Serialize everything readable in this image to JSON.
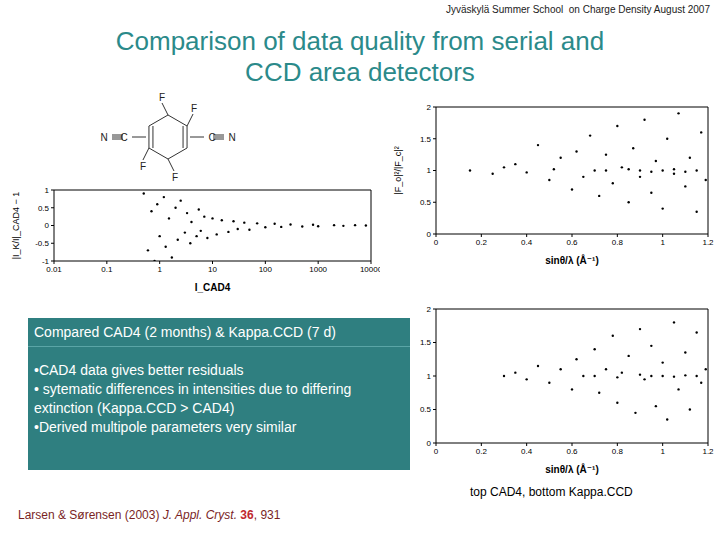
{
  "header": "Jyväskylä Summer School  on Charge Density August 2007",
  "title": [
    "Comparison of data quality from serial and",
    "CCD area detectors"
  ],
  "molecule": {
    "labels": {
      "top_left": "F",
      "top_right": "F",
      "bottom_left": "F",
      "bottom_right": "F",
      "left_n": "N",
      "left_c": "C",
      "right_c": "C",
      "right_n": "N"
    }
  },
  "chart_data": [
    {
      "type": "scatter",
      "xlabel": "I_CAD4",
      "ylabel": "|I_K/I|_CAD4 − 1",
      "log": "x",
      "xlim": [
        0.01,
        10000
      ],
      "xticks": [
        0.01,
        0.1,
        1,
        10,
        100,
        1000,
        10000
      ],
      "ylim": [
        -1,
        1
      ],
      "yticks": [
        -1,
        -0.5,
        0,
        0.5,
        1
      ],
      "color": "#000000",
      "marker": "dot",
      "x": [
        0.5,
        0.6,
        0.7,
        0.8,
        0.9,
        1,
        1.2,
        1.3,
        1.5,
        1.7,
        2,
        2.2,
        2.5,
        3,
        3.3,
        3.8,
        4,
        5,
        5.5,
        6,
        7,
        8,
        10,
        12,
        15,
        20,
        25,
        30,
        40,
        50,
        70,
        100,
        150,
        200,
        300,
        500,
        800,
        1000,
        2000,
        3000,
        5000,
        8000
      ],
      "values": [
        0.9,
        -0.7,
        0.4,
        -1,
        0.6,
        -0.3,
        0.8,
        -0.6,
        0.2,
        -0.9,
        0.5,
        -0.4,
        0.7,
        -0.2,
        0.35,
        -0.5,
        0.1,
        -0.3,
        0.45,
        -0.15,
        0.25,
        -0.35,
        0.2,
        -0.25,
        0.15,
        -0.18,
        0.12,
        -0.1,
        0.08,
        -0.12,
        0.06,
        -0.05,
        0.05,
        -0.04,
        0.03,
        -0.03,
        0.02,
        -0.02,
        0.01,
        -0.01,
        0.01,
        0
      ]
    },
    {
      "type": "scatter",
      "xlabel": "sinθ/λ (Å⁻¹)",
      "ylabel": "|F_o|²/|F_c|²",
      "xlim": [
        0,
        1.2
      ],
      "xticks": [
        0,
        0.2,
        0.4,
        0.6,
        0.8,
        1,
        1.2
      ],
      "ylim": [
        0,
        2
      ],
      "yticks": [
        0,
        0.5,
        1,
        1.5,
        2
      ],
      "color": "#000000",
      "marker": "dot",
      "x": [
        0.15,
        0.25,
        0.3,
        0.35,
        0.4,
        0.45,
        0.5,
        0.52,
        0.55,
        0.6,
        0.62,
        0.65,
        0.68,
        0.7,
        0.72,
        0.75,
        0.78,
        0.8,
        0.82,
        0.85,
        0.87,
        0.9,
        0.92,
        0.95,
        0.97,
        1.0,
        1.02,
        1.05,
        1.07,
        1.1,
        1.12,
        1.15,
        1.17,
        1.19,
        1.0,
        1.05,
        1.1,
        1.15,
        0.9,
        0.95,
        0.85,
        0.75
      ],
      "values": [
        1.0,
        0.95,
        1.05,
        1.1,
        0.97,
        1.4,
        0.85,
        1.02,
        1.2,
        0.7,
        1.3,
        0.9,
        1.55,
        1.0,
        0.6,
        1.25,
        0.8,
        1.7,
        1.05,
        0.5,
        1.35,
        0.9,
        1.8,
        0.65,
        1.15,
        0.4,
        1.5,
        0.95,
        1.9,
        0.75,
        1.2,
        0.35,
        1.6,
        0.85,
        1.0,
        1.02,
        0.98,
        1.0,
        1.0,
        0.98,
        1.02,
        1.0
      ]
    },
    {
      "type": "scatter",
      "xlabel": "sinθ/λ (Å⁻¹)",
      "ylabel": "|F_o|²/|F_c|²",
      "xlim": [
        0,
        1.2
      ],
      "xticks": [
        0,
        0.2,
        0.4,
        0.6,
        0.8,
        1,
        1.2
      ],
      "ylim": [
        0,
        2
      ],
      "yticks": [
        0,
        0.5,
        1,
        1.5,
        2
      ],
      "color": "#000000",
      "marker": "dot",
      "x": [
        0.3,
        0.35,
        0.4,
        0.45,
        0.5,
        0.55,
        0.6,
        0.62,
        0.65,
        0.7,
        0.72,
        0.75,
        0.78,
        0.8,
        0.82,
        0.85,
        0.88,
        0.9,
        0.92,
        0.95,
        0.97,
        1.0,
        1.02,
        1.05,
        1.07,
        1.1,
        1.12,
        1.15,
        1.17,
        1.19,
        1.0,
        1.05,
        1.1,
        1.15,
        0.9,
        0.95,
        0.8,
        0.7
      ],
      "values": [
        1.0,
        1.05,
        0.95,
        1.15,
        0.9,
        1.1,
        0.8,
        1.25,
        1.0,
        1.4,
        0.75,
        1.1,
        1.6,
        0.6,
        1.05,
        1.3,
        0.45,
        1.7,
        0.95,
        1.45,
        0.55,
        1.2,
        0.35,
        1.8,
        0.8,
        1.35,
        0.5,
        1.65,
        0.9,
        1.1,
        1.0,
        0.99,
        1.01,
        1.0,
        1.02,
        1.0,
        0.98,
        1.0
      ]
    }
  ],
  "textbox": {
    "heading": "Compared CAD4 (2 months) & Kappa.CCD (7 d)",
    "bullets": [
      "•CAD4 data gives better residuals",
      "• sytematic differences in intensities due to differing extinction (Kappa.CCD > CAD4)",
      "•Derived multipole parameters very similar"
    ]
  },
  "caption": "top CAD4, bottom Kappa.CCD",
  "citation": {
    "authors": "Larsen & Sørensen (2003)",
    "journal": "J. Appl. Cryst.",
    "volume": "36",
    "pages": ", 931"
  }
}
